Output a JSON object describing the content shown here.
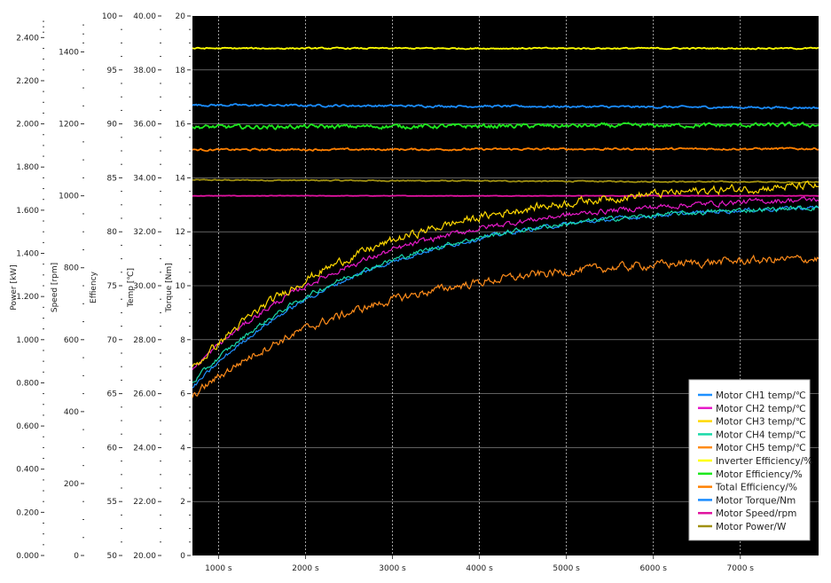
{
  "chart_data": {
    "type": "line",
    "x_axis": {
      "range": [
        700,
        7900
      ],
      "ticks": [
        1000,
        2000,
        3000,
        4000,
        5000,
        6000,
        7000
      ],
      "tick_labels": [
        "1000 s",
        "2000 s",
        "3000 s",
        "4000 s",
        "5000 s",
        "6000 s",
        "7000 s"
      ],
      "grid": true
    },
    "y_axes": [
      {
        "id": "power",
        "label": "Power [kW]",
        "range": [
          0,
          2.5
        ],
        "ticks": [
          0,
          0.2,
          0.4,
          0.6,
          0.8,
          1.0,
          1.2,
          1.4,
          1.6,
          1.8,
          2.0,
          2.2,
          2.4
        ],
        "tick_labels": [
          "0.000",
          "0.200",
          "0.400",
          "0.600",
          "0.800",
          "1.000",
          "1.200",
          "1.400",
          "1.600",
          "1.800",
          "2.000",
          "2.200",
          "2.400"
        ]
      },
      {
        "id": "speed",
        "label": "Speed [rpm]",
        "range": [
          0,
          1500
        ],
        "ticks": [
          0,
          200,
          400,
          600,
          800,
          1000,
          1200,
          1400
        ],
        "tick_labels": [
          "0",
          "200",
          "400",
          "600",
          "800",
          "1000",
          "1200",
          "1400"
        ]
      },
      {
        "id": "efficiency",
        "label": "Effiency",
        "range": [
          50,
          100
        ],
        "ticks": [
          50,
          55,
          60,
          65,
          70,
          75,
          80,
          85,
          90,
          95,
          100
        ],
        "tick_labels": [
          "50",
          "55",
          "60",
          "65",
          "70",
          "75",
          "80",
          "85",
          "90",
          "95",
          "100"
        ]
      },
      {
        "id": "temp",
        "label": "Temp [℃]",
        "range": [
          20,
          40
        ],
        "ticks": [
          20,
          22,
          24,
          26,
          28,
          30,
          32,
          34,
          36,
          38,
          40
        ],
        "tick_labels": [
          "20.00",
          "22.00",
          "24.00",
          "26.00",
          "28.00",
          "30.00",
          "32.00",
          "34.00",
          "36.00",
          "38.00",
          "40.00"
        ]
      },
      {
        "id": "torque",
        "label": "Torque [Nm]",
        "range": [
          0,
          20
        ],
        "ticks": [
          0,
          2,
          4,
          6,
          8,
          10,
          12,
          14,
          16,
          18,
          20
        ],
        "tick_labels": [
          "0",
          "2",
          "4",
          "6",
          "8",
          "10",
          "12",
          "14",
          "16",
          "18",
          "20"
        ]
      }
    ],
    "background": "#000000",
    "grid_color": "#9a9a9a",
    "legend_position": "bottom-right",
    "series": [
      {
        "name": "Motor CH1 temp/℃",
        "axis": "temp",
        "color": "#1e90ff",
        "shape": "rise",
        "y0": 26.2,
        "y1": 32.9,
        "noise": 0.06
      },
      {
        "name": "Motor CH2 temp/℃",
        "axis": "temp",
        "color": "#e619c8",
        "shape": "rise",
        "y0": 26.9,
        "y1": 33.2,
        "noise": 0.08
      },
      {
        "name": "Motor CH3 temp/℃",
        "axis": "temp",
        "color": "#ffd800",
        "shape": "rise",
        "y0": 26.9,
        "y1": 33.7,
        "noise": 0.12
      },
      {
        "name": "Motor CH4 temp/℃",
        "axis": "temp",
        "color": "#19d9a8",
        "shape": "rise",
        "y0": 26.4,
        "y1": 32.9,
        "noise": 0.07
      },
      {
        "name": "Motor CH5 temp/℃",
        "axis": "temp",
        "color": "#ff8c1a",
        "shape": "rise",
        "y0": 25.9,
        "y1": 31.0,
        "noise": 0.12
      },
      {
        "name": "Inverter Efficiency/%",
        "axis": "efficiency",
        "color": "#ffff00",
        "shape": "flat",
        "y0": 97.0,
        "y1": 97.0,
        "noise": 0.05
      },
      {
        "name": "Motor Efficiency/%",
        "axis": "efficiency",
        "color": "#1ee81e",
        "shape": "flat",
        "y0": 89.7,
        "y1": 89.9,
        "noise": 0.15
      },
      {
        "name": "Total Efficiency/%",
        "axis": "efficiency",
        "color": "#ff8000",
        "shape": "flat",
        "y0": 87.6,
        "y1": 87.7,
        "noise": 0.07
      },
      {
        "name": "Motor Torque/Nm",
        "axis": "torque",
        "color": "#1a8cff",
        "shape": "flat",
        "y0": 16.7,
        "y1": 16.6,
        "noise": 0.03
      },
      {
        "name": "Motor Speed/rpm",
        "axis": "speed",
        "color": "#e0139f",
        "shape": "flat",
        "y0": 1000,
        "y1": 1000,
        "noise": 0.5
      },
      {
        "name": "Motor Power/W",
        "axis": "power",
        "color": "#a09010",
        "shape": "flat",
        "y0": 1.74,
        "y1": 1.73,
        "noise": 0.002
      }
    ]
  }
}
